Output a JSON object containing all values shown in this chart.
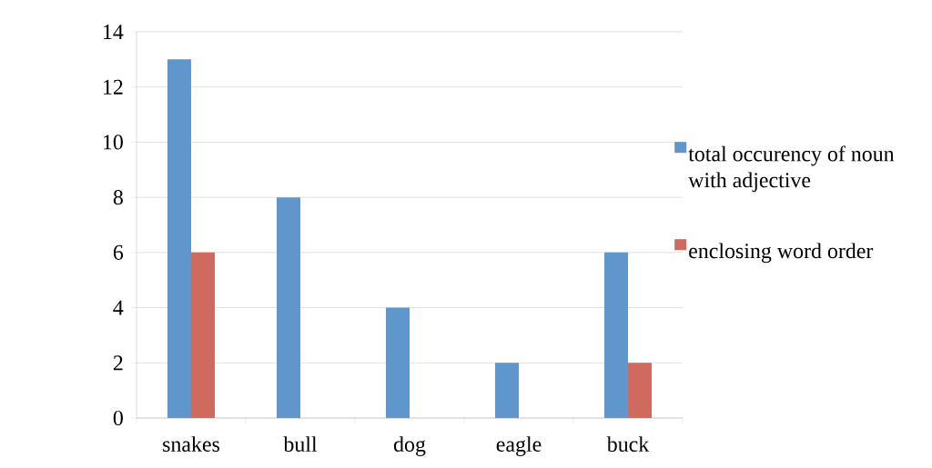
{
  "chart_data": {
    "type": "bar",
    "categories": [
      "snakes",
      "bull",
      "dog",
      "eagle",
      "buck"
    ],
    "series": [
      {
        "name": "total occurency of noun with adjective",
        "color": "#5f97cc",
        "values": [
          13,
          8,
          4,
          2,
          6
        ]
      },
      {
        "name": "enclosing word order",
        "color": "#cf6a5f",
        "values": [
          6,
          0,
          0,
          0,
          2
        ]
      }
    ],
    "ylim": [
      0,
      14
    ],
    "yticks": [
      0,
      2,
      4,
      6,
      8,
      10,
      12,
      14
    ],
    "grid": "y",
    "legend": "right"
  }
}
